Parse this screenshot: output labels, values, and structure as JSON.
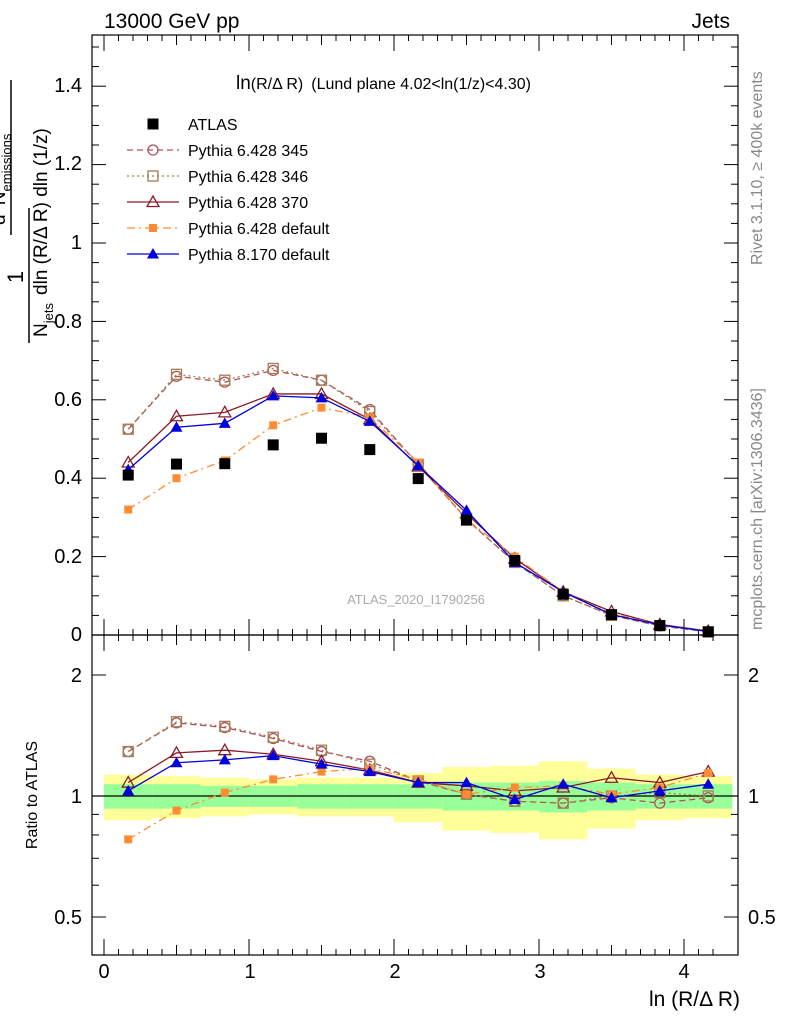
{
  "header": {
    "left": "13000 GeV pp",
    "right": "Jets"
  },
  "side_text": {
    "rivet": "Rivet 3.1.10, ≥ 400k events",
    "mcplots": "mcplots.cern.ch [arXiv:1306.3436]"
  },
  "main_plot": {
    "title_main": "ln",
    "title_var": "(R/Δ R)",
    "title_rest": "(Lund plane 4.02<ln(1/z)<4.30)",
    "ylabel_num1": "d",
    "ylabel_num1_sup": "2",
    "ylabel_num2": "N",
    "ylabel_num2_sub": "emissions",
    "ylabel_one": "1",
    "ylabel_den1": "N",
    "ylabel_den1_sub": "jets",
    "ylabel_den_rest": "dln (R/Δ R) dln (1/z)",
    "watermark": "ATLAS_2020_I1790256",
    "yticks": [
      "0",
      "0.2",
      "0.4",
      "0.6",
      "0.8",
      "1",
      "1.2",
      "1.4"
    ]
  },
  "ratio_plot": {
    "ylabel": "Ratio to ATLAS",
    "yticks_left": [
      "0.5",
      "1",
      "2"
    ],
    "yticks_right": [
      "0.5",
      "1",
      "2"
    ],
    "xticks": [
      "0",
      "1",
      "2",
      "3",
      "4"
    ],
    "xlabel": "ln (R/Δ R)"
  },
  "legend": [
    {
      "label": "ATLAS",
      "color": "#000000",
      "marker": "filled-square",
      "line": "none"
    },
    {
      "label": "Pythia 6.428 345",
      "color": "#b0505a",
      "marker": "open-circle",
      "line": "dashed"
    },
    {
      "label": "Pythia 6.428 346",
      "color": "#a08050",
      "marker": "open-square",
      "line": "dotted"
    },
    {
      "label": "Pythia 6.428 370",
      "color": "#8b1a28",
      "marker": "open-triangle",
      "line": "solid"
    },
    {
      "label": "Pythia 6.428 default",
      "color": "#ff8c32",
      "marker": "filled-square-small",
      "line": "dashdot"
    },
    {
      "label": "Pythia 8.170 default",
      "color": "#0000dd",
      "marker": "filled-triangle",
      "line": "solid"
    }
  ],
  "chart_data": {
    "type": "scatter",
    "x": [
      0.167,
      0.5,
      0.833,
      1.167,
      1.5,
      1.833,
      2.167,
      2.5,
      2.833,
      3.167,
      3.5,
      3.833,
      4.167
    ],
    "xlim": [
      -0.08,
      4.38
    ],
    "ylim": [
      0,
      1.53
    ],
    "ratio_ylim": [
      0.4,
      2.4
    ],
    "ratio_scale": "log",
    "xlabel": "ln (R/Δ R)",
    "series": [
      {
        "name": "ATLAS",
        "values": [
          0.408,
          0.436,
          0.437,
          0.485,
          0.502,
          0.473,
          0.399,
          0.293,
          0.19,
          0.104,
          0.052,
          0.024,
          0.008
        ],
        "ratio": [
          1,
          1,
          1,
          1,
          1,
          1,
          1,
          1,
          1,
          1,
          1,
          1,
          1
        ]
      },
      {
        "name": "Pythia 6.428 345",
        "values": [
          0.525,
          0.66,
          0.645,
          0.675,
          0.65,
          0.575,
          0.435,
          0.295,
          0.185,
          0.1,
          0.05,
          0.023,
          0.008
        ],
        "ratio": [
          1.29,
          1.52,
          1.48,
          1.39,
          1.29,
          1.22,
          1.09,
          1.01,
          0.97,
          0.96,
          0.99,
          0.96,
          0.99
        ]
      },
      {
        "name": "Pythia 6.428 346",
        "values": [
          0.525,
          0.665,
          0.65,
          0.68,
          0.65,
          0.57,
          0.435,
          0.295,
          0.185,
          0.1,
          0.05,
          0.024,
          0.008
        ],
        "ratio": [
          1.29,
          1.53,
          1.49,
          1.4,
          1.3,
          1.2,
          1.09,
          1.01,
          0.97,
          0.96,
          1.0,
          1.02,
          1.0
        ]
      },
      {
        "name": "Pythia 6.428 370",
        "values": [
          0.44,
          0.558,
          0.568,
          0.615,
          0.615,
          0.55,
          0.43,
          0.31,
          0.195,
          0.11,
          0.06,
          0.027,
          0.01
        ],
        "ratio": [
          1.08,
          1.28,
          1.3,
          1.27,
          1.22,
          1.16,
          1.08,
          1.06,
          1.03,
          1.05,
          1.11,
          1.08,
          1.15
        ]
      },
      {
        "name": "Pythia 6.428 default",
        "values": [
          0.32,
          0.4,
          0.445,
          0.535,
          0.58,
          0.555,
          0.44,
          0.295,
          0.2,
          0.11,
          0.055,
          0.026,
          0.009
        ],
        "ratio": [
          0.78,
          0.92,
          1.02,
          1.1,
          1.15,
          1.17,
          1.1,
          1.01,
          1.05,
          1.06,
          1.01,
          1.05,
          1.14
        ]
      },
      {
        "name": "Pythia 8.170 default",
        "values": [
          0.422,
          0.53,
          0.54,
          0.61,
          0.605,
          0.545,
          0.432,
          0.318,
          0.185,
          0.11,
          0.052,
          0.026,
          0.009
        ],
        "ratio": [
          1.03,
          1.21,
          1.23,
          1.26,
          1.2,
          1.15,
          1.08,
          1.08,
          0.98,
          1.07,
          0.99,
          1.03,
          1.07
        ]
      }
    ],
    "band_inner": [
      0.07,
      0.07,
      0.06,
      0.06,
      0.07,
      0.07,
      0.07,
      0.08,
      0.08,
      0.09,
      0.08,
      0.07,
      0.07
    ],
    "band_outer": [
      0.13,
      0.12,
      0.11,
      0.1,
      0.11,
      0.11,
      0.14,
      0.18,
      0.19,
      0.22,
      0.17,
      0.13,
      0.12
    ]
  }
}
